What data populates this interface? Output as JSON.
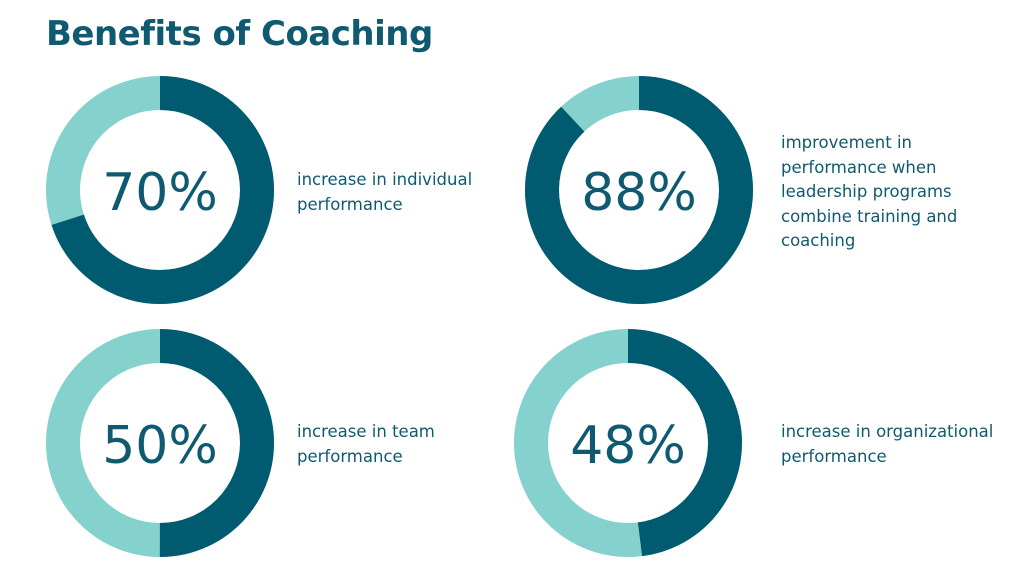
{
  "title": "Benefits of Coaching",
  "colors": {
    "filled": "#005a70",
    "remainder": "#85d1cd",
    "text": "#0f5a70"
  },
  "chart_data": [
    {
      "type": "pie",
      "variant": "donut",
      "value": 70,
      "max": 100,
      "center_label": "70%",
      "description": [
        "increase in individual",
        "performance"
      ]
    },
    {
      "type": "pie",
      "variant": "donut",
      "value": 88,
      "max": 100,
      "center_label": "88%",
      "description": [
        "improvement in",
        "performance when",
        "leadership programs",
        "combine training and",
        "coaching"
      ]
    },
    {
      "type": "pie",
      "variant": "donut",
      "value": 50,
      "max": 100,
      "center_label": "50%",
      "description": [
        "increase in team",
        "performance"
      ]
    },
    {
      "type": "pie",
      "variant": "donut",
      "value": 48,
      "max": 100,
      "center_label": "48%",
      "description": [
        "increase in organizational",
        "performance"
      ]
    }
  ]
}
